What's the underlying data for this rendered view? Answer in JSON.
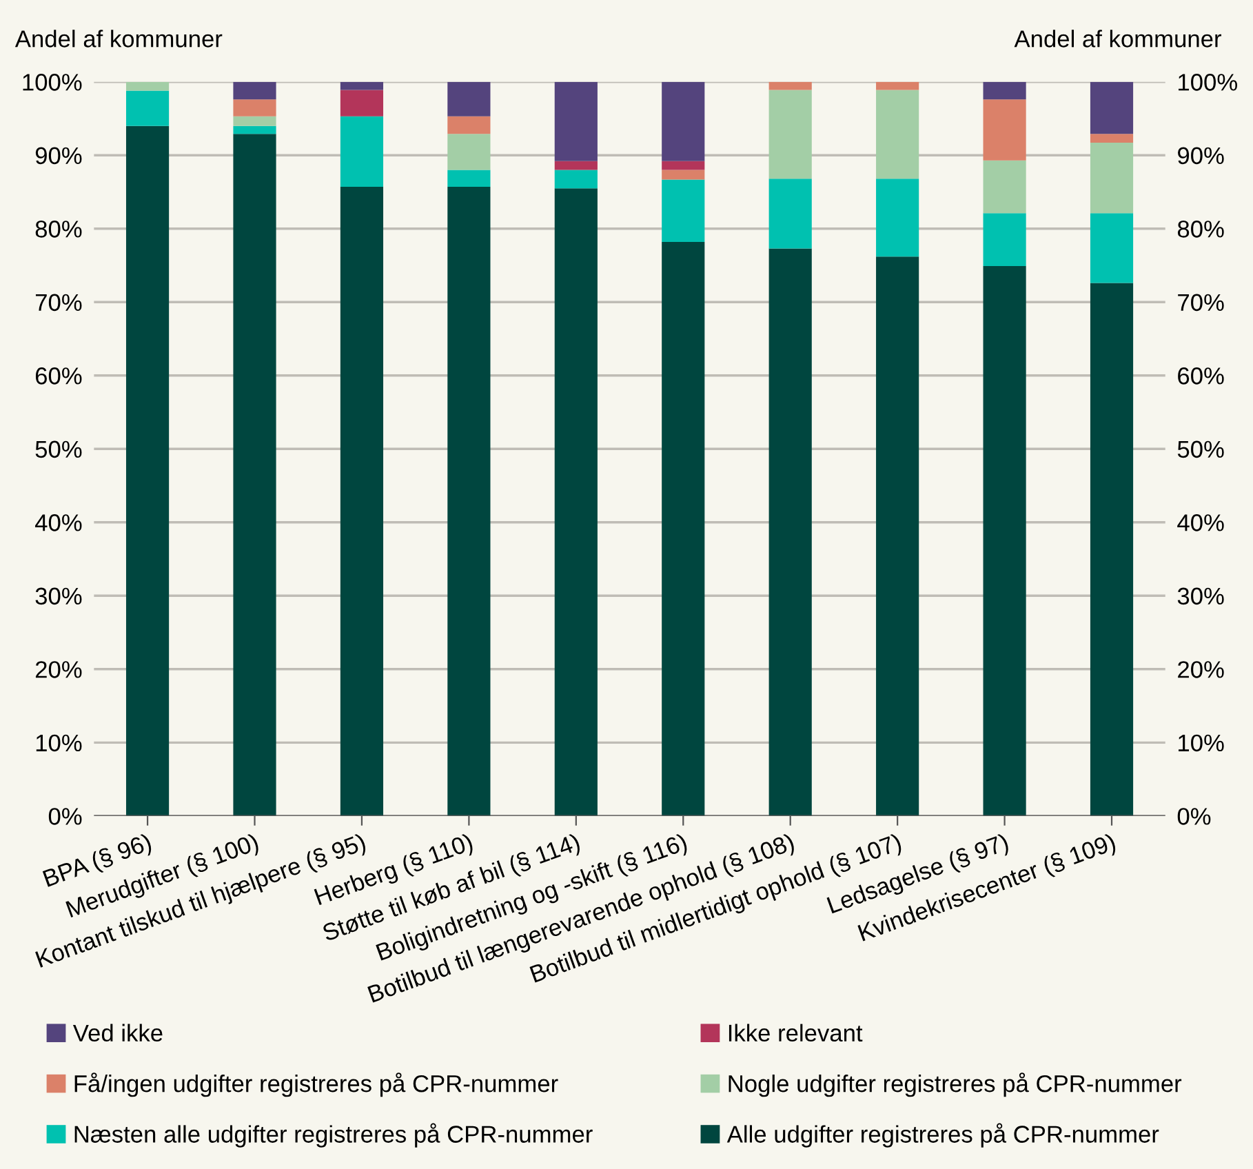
{
  "chart_data": {
    "type": "bar",
    "stacked": true,
    "ylabel": "Andel af kommuner",
    "y2label": "Andel af kommuner",
    "categories": [
      "BPA (§ 96)",
      "Merudgifter (§ 100)",
      "Kontant tilskud til hjælpere (§ 95)",
      "Herberg (§ 110)",
      "Støtte til køb af bil (§ 114)",
      "Boligindretning og -skift (§ 116)",
      "Botilbud til længerevarende ophold (§ 108)",
      "Botilbud til midlertidigt ophold (§ 107)",
      "Ledsagelse (§ 97)",
      "Kvindekrisecenter (§ 109)"
    ],
    "series": [
      {
        "name": "Alle udgifter registreres på CPR-nummer",
        "color": "#00463f",
        "values": [
          94.0,
          92.9,
          85.7,
          85.7,
          85.5,
          78.2,
          77.3,
          76.2,
          74.9,
          72.6
        ]
      },
      {
        "name": "Næsten alle udgifter registreres på CPR-nummer",
        "color": "#00c1b0",
        "values": [
          4.8,
          1.1,
          9.6,
          2.3,
          2.5,
          8.5,
          9.5,
          10.6,
          7.2,
          9.5
        ]
      },
      {
        "name": "Nogle udgifter registreres på CPR-nummer",
        "color": "#a3cea6",
        "values": [
          1.2,
          1.3,
          null,
          4.9,
          null,
          null,
          12.1,
          12.1,
          7.2,
          9.6
        ]
      },
      {
        "name": "Få/ingen udgifter registreres på CPR-nummer",
        "color": "#db8169",
        "values": [
          null,
          2.3,
          null,
          2.4,
          null,
          1.3,
          1.1,
          1.1,
          8.3,
          1.2
        ]
      },
      {
        "name": "Ikke relevant",
        "color": "#b3355a",
        "values": [
          null,
          null,
          3.6,
          null,
          1.2,
          1.2,
          null,
          null,
          null,
          null
        ]
      },
      {
        "name": "Ved ikke",
        "color": "#54447d",
        "values": [
          null,
          2.4,
          1.1,
          4.7,
          10.8,
          10.8,
          null,
          null,
          2.4,
          7.1
        ]
      }
    ],
    "ylim": [
      0,
      100
    ],
    "yticks": [
      {
        "value": 0,
        "label": "0%"
      },
      {
        "value": 10,
        "label": "10%"
      },
      {
        "value": 20,
        "label": "20%"
      },
      {
        "value": 30,
        "label": "30%"
      },
      {
        "value": 40,
        "label": "40%"
      },
      {
        "value": 50,
        "label": "50%"
      },
      {
        "value": 60,
        "label": "60%"
      },
      {
        "value": 70,
        "label": "70%"
      },
      {
        "value": 80,
        "label": "80%"
      },
      {
        "value": 90,
        "label": "90%"
      },
      {
        "value": 100,
        "label": "100%"
      }
    ],
    "y2lim": [
      0,
      100
    ],
    "y2ticks": [
      {
        "value": 0,
        "label": "0%"
      },
      {
        "value": 10,
        "label": "10%"
      },
      {
        "value": 20,
        "label": "20%"
      },
      {
        "value": 30,
        "label": "30%"
      },
      {
        "value": 40,
        "label": "40%"
      },
      {
        "value": 50,
        "label": "50%"
      },
      {
        "value": 60,
        "label": "60%"
      },
      {
        "value": 70,
        "label": "70%"
      },
      {
        "value": 80,
        "label": "80%"
      },
      {
        "value": 90,
        "label": "90%"
      },
      {
        "value": 100,
        "label": "100%"
      }
    ],
    "grid": "y",
    "legend": "bottom"
  }
}
